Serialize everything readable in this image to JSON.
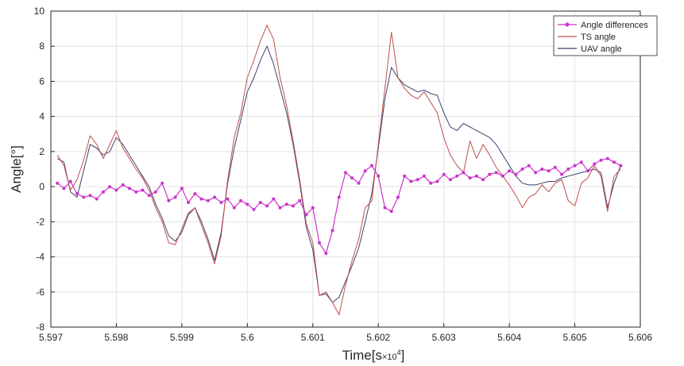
{
  "chart_data": {
    "type": "line",
    "title": "",
    "xlabel": "Time",
    "xlabel_unit": "[s",
    "xlabel_unit_multiplier": "×10",
    "xlabel_unit_exponent": "4",
    "xlabel_unit_close": "]",
    "ylabel": "Angle[°]",
    "xlim": [
      5.597,
      5.606
    ],
    "ylim": [
      -8,
      10
    ],
    "x_ticks": [
      "5.597",
      "5.598",
      "5.599",
      "5.6",
      "5.601",
      "5.602",
      "5.603",
      "5.604",
      "5.605",
      "5.606"
    ],
    "y_ticks": [
      "-8",
      "-6",
      "-4",
      "-2",
      "0",
      "2",
      "4",
      "6",
      "8",
      "10"
    ],
    "grid": true,
    "legend_position": "top-right",
    "x": [
      5.5971,
      5.5972,
      5.5973,
      5.5974,
      5.5975,
      5.5976,
      5.5977,
      5.5978,
      5.5979,
      5.598,
      5.5981,
      5.5982,
      5.5983,
      5.5984,
      5.5985,
      5.5986,
      5.5987,
      5.5988,
      5.5989,
      5.599,
      5.5991,
      5.5992,
      5.5993,
      5.5994,
      5.5995,
      5.5996,
      5.5997,
      5.5998,
      5.5999,
      5.6,
      5.6001,
      5.6002,
      5.6003,
      5.6004,
      5.6005,
      5.6006,
      5.6007,
      5.6008,
      5.6009,
      5.601,
      5.6011,
      5.6012,
      5.6013,
      5.6014,
      5.6015,
      5.6016,
      5.6017,
      5.6018,
      5.6019,
      5.602,
      5.6021,
      5.6022,
      5.6023,
      5.6024,
      5.6025,
      5.6026,
      5.6027,
      5.6028,
      5.6029,
      5.603,
      5.6031,
      5.6032,
      5.6033,
      5.6034,
      5.6035,
      5.6036,
      5.6037,
      5.6038,
      5.6039,
      5.604,
      5.6041,
      5.6042,
      5.6043,
      5.6044,
      5.6045,
      5.6046,
      5.6047,
      5.6048,
      5.6049,
      5.605,
      5.6051,
      5.6052,
      5.6053,
      5.6054,
      5.6055,
      5.6056,
      5.6057
    ],
    "series": [
      {
        "name": "Angle differences",
        "color": "#cc33cc",
        "values": [
          0.2,
          -0.1,
          0.3,
          -0.4,
          -0.6,
          -0.5,
          -0.7,
          -0.3,
          0.0,
          -0.2,
          0.1,
          -0.1,
          -0.3,
          -0.2,
          -0.5,
          -0.3,
          0.2,
          -0.8,
          -0.6,
          -0.1,
          -0.9,
          -0.4,
          -0.7,
          -0.8,
          -0.6,
          -0.9,
          -0.7,
          -1.2,
          -0.8,
          -1.0,
          -1.3,
          -0.9,
          -1.1,
          -0.7,
          -1.2,
          -1.0,
          -1.1,
          -0.8,
          -1.6,
          -1.2,
          -3.2,
          -3.8,
          -2.5,
          -0.6,
          0.8,
          0.5,
          0.2,
          0.9,
          1.2,
          0.6,
          -1.2,
          -1.4,
          -0.6,
          0.6,
          0.3,
          0.4,
          0.6,
          0.2,
          0.3,
          0.7,
          0.4,
          0.6,
          0.8,
          0.5,
          0.6,
          0.4,
          0.7,
          0.8,
          0.6,
          0.9,
          0.7,
          1.0,
          1.2,
          0.8,
          1.0,
          0.9,
          1.1,
          0.7,
          1.0,
          1.2,
          1.4,
          0.9,
          1.3,
          1.5,
          1.6,
          1.4,
          1.2
        ]
      },
      {
        "name": "TS angle",
        "color": "#c0504d",
        "values": [
          1.8,
          1.2,
          -0.2,
          0.4,
          1.5,
          2.9,
          2.4,
          1.6,
          2.4,
          3.2,
          2.2,
          1.6,
          1.0,
          0.5,
          -0.2,
          -1.2,
          -2.0,
          -3.2,
          -3.3,
          -2.4,
          -1.5,
          -1.2,
          -2.2,
          -3.2,
          -4.4,
          -2.8,
          0.4,
          2.8,
          4.2,
          6.2,
          7.2,
          8.3,
          9.2,
          8.4,
          6.2,
          4.6,
          2.6,
          0.4,
          -2.1,
          -3.2,
          -6.2,
          -6.0,
          -6.6,
          -7.3,
          -5.6,
          -4.2,
          -3.0,
          -1.2,
          -0.8,
          2.4,
          5.6,
          8.8,
          6.2,
          5.6,
          5.2,
          5.0,
          5.4,
          4.8,
          4.2,
          2.8,
          1.8,
          1.2,
          0.8,
          2.6,
          1.6,
          2.4,
          1.8,
          1.1,
          0.6,
          0.1,
          -0.5,
          -1.2,
          -0.6,
          -0.4,
          0.1,
          -0.3,
          0.2,
          0.4,
          -0.8,
          -1.1,
          0.2,
          0.5,
          1.2,
          0.6,
          -1.4,
          0.6,
          1.0
        ]
      },
      {
        "name": "UAV angle",
        "color": "#3f3f6f",
        "values": [
          1.6,
          1.4,
          -0.3,
          -0.6,
          0.9,
          2.4,
          2.2,
          1.8,
          2.0,
          2.8,
          2.4,
          1.8,
          1.2,
          0.6,
          0.0,
          -1.0,
          -1.8,
          -2.8,
          -3.1,
          -2.6,
          -1.6,
          -1.2,
          -2.0,
          -3.0,
          -4.2,
          -2.6,
          0.2,
          2.2,
          3.8,
          5.4,
          6.2,
          7.2,
          8.0,
          7.0,
          5.6,
          4.2,
          2.4,
          0.2,
          -2.3,
          -3.6,
          -6.2,
          -6.1,
          -6.6,
          -6.3,
          -5.4,
          -4.5,
          -3.5,
          -2.0,
          -0.4,
          2.2,
          5.0,
          6.8,
          6.2,
          5.8,
          5.6,
          5.4,
          5.5,
          5.3,
          5.2,
          4.2,
          3.4,
          3.2,
          3.6,
          3.4,
          3.2,
          3.0,
          2.8,
          2.4,
          1.8,
          1.2,
          0.6,
          0.2,
          0.1,
          0.1,
          0.2,
          0.3,
          0.3,
          0.5,
          0.6,
          0.7,
          0.8,
          0.9,
          1.0,
          0.8,
          -1.2,
          0.2,
          1.2
        ]
      }
    ]
  }
}
